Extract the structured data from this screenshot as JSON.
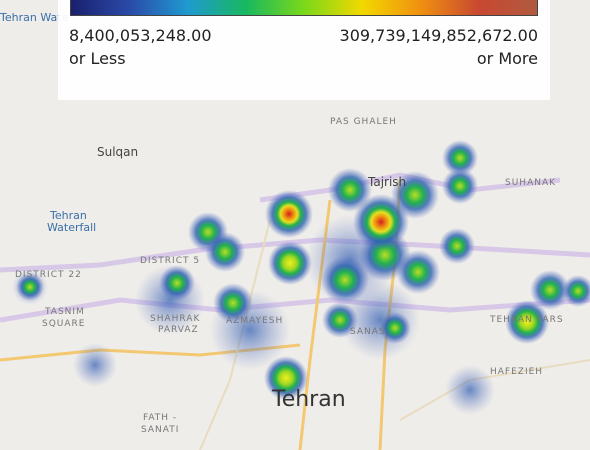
{
  "legend": {
    "min": "8,400,053,248.00",
    "min_note": "or Less",
    "max": "309,739,149,852,672.00",
    "max_note": "or More"
  },
  "labels": [
    "Tehran Wate",
    "Sulqan",
    "Tehran",
    "Waterfall",
    "Tajrish",
    "DISTRICT 22",
    "DISTRICT 5",
    "TASNIM",
    "SQUARE",
    "SHAHRAK",
    "PARVAZ",
    "AZMAYESH",
    "SANAS",
    "Tehran",
    "FATH -",
    "SANATI",
    "HAFEZIEH",
    "SUHANAK",
    "PAS GHALEH",
    "TEHRAN PARS"
  ]
}
